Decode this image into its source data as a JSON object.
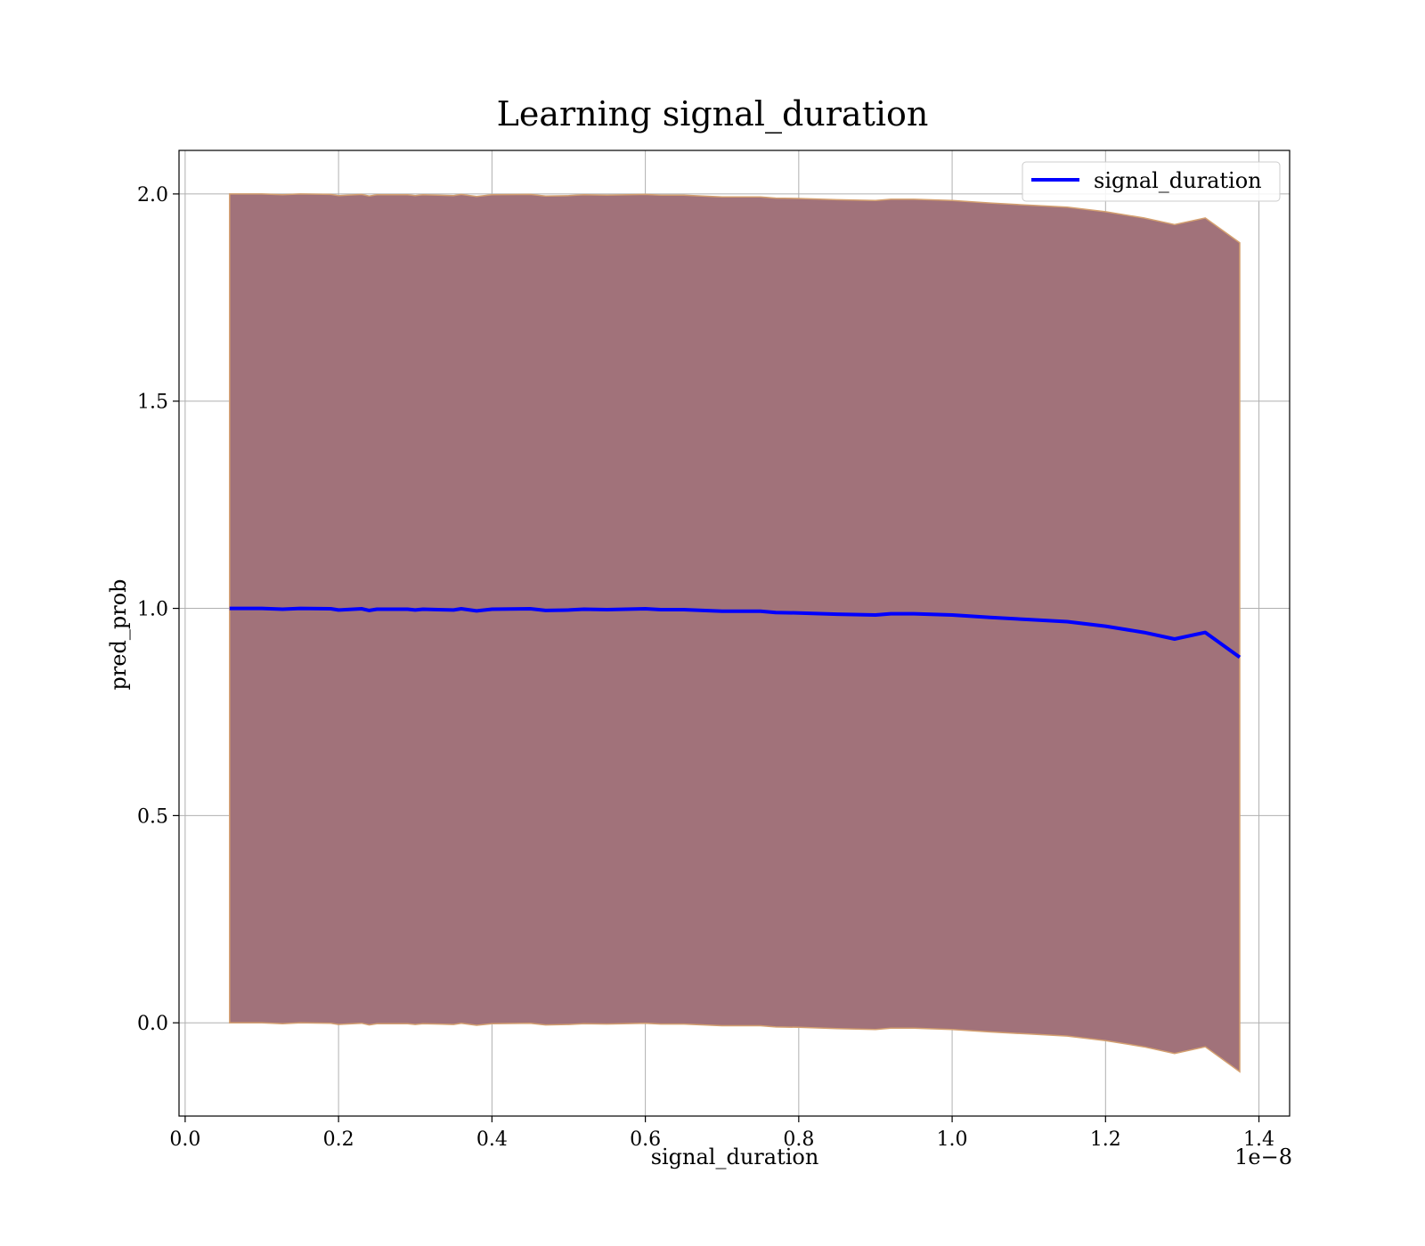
{
  "chart_data": {
    "type": "line",
    "title": "Learning signal_duration",
    "xlabel": "signal_duration",
    "ylabel": "pred_prob",
    "x_offset_label": "1e−8",
    "xlim": [
      -0.008,
      1.44
    ],
    "ylim": [
      -0.225,
      2.105
    ],
    "x_scale_label": "×1e-8",
    "xticks": [
      0.0,
      0.2,
      0.4,
      0.6,
      0.8,
      1.0,
      1.2,
      1.4
    ],
    "xtick_labels": [
      "0.0",
      "0.2",
      "0.4",
      "0.6",
      "0.8",
      "1.0",
      "1.2",
      "1.4"
    ],
    "yticks": [
      0.0,
      0.5,
      1.0,
      1.5,
      2.0
    ],
    "ytick_labels": [
      "0.0",
      "0.5",
      "1.0",
      "1.5",
      "2.0"
    ],
    "grid": true,
    "legend_position": "top-right",
    "colors": {
      "line": "#0000ff",
      "band_fill": "#a1727a",
      "band_edge": "#d4a070",
      "grid": "#b0b0b0"
    },
    "series": [
      {
        "name": "signal_duration",
        "x": [
          0.058,
          0.1,
          0.127,
          0.15,
          0.19,
          0.2,
          0.23,
          0.24,
          0.25,
          0.29,
          0.3,
          0.31,
          0.33,
          0.35,
          0.36,
          0.38,
          0.4,
          0.45,
          0.47,
          0.5,
          0.52,
          0.55,
          0.6,
          0.62,
          0.65,
          0.7,
          0.75,
          0.77,
          0.8,
          0.85,
          0.9,
          0.92,
          0.95,
          1.0,
          1.05,
          1.1,
          1.15,
          1.2,
          1.25,
          1.29,
          1.33,
          1.375
        ],
        "y": [
          1.0,
          1.0,
          0.998,
          1.0,
          0.999,
          0.996,
          0.999,
          0.995,
          0.998,
          0.998,
          0.996,
          0.998,
          0.997,
          0.996,
          0.999,
          0.994,
          0.998,
          0.999,
          0.995,
          0.996,
          0.998,
          0.997,
          0.999,
          0.997,
          0.997,
          0.993,
          0.993,
          0.99,
          0.989,
          0.986,
          0.984,
          0.987,
          0.987,
          0.984,
          0.978,
          0.973,
          0.968,
          0.957,
          0.942,
          0.926,
          0.942,
          0.882
        ]
      }
    ],
    "band": {
      "upper": [
        2.0,
        2.0,
        1.998,
        2.0,
        1.999,
        1.996,
        1.999,
        1.995,
        1.998,
        1.998,
        1.996,
        1.998,
        1.997,
        1.996,
        1.999,
        1.994,
        1.998,
        1.999,
        1.995,
        1.996,
        1.998,
        1.997,
        1.999,
        1.997,
        1.997,
        1.993,
        1.993,
        1.99,
        1.989,
        1.986,
        1.984,
        1.987,
        1.987,
        1.984,
        1.978,
        1.973,
        1.968,
        1.957,
        1.942,
        1.926,
        1.942,
        1.882
      ],
      "lower": [
        0.0,
        0.0,
        -0.002,
        0.0,
        -0.001,
        -0.004,
        -0.001,
        -0.005,
        -0.002,
        -0.002,
        -0.004,
        -0.002,
        -0.003,
        -0.004,
        -0.001,
        -0.006,
        -0.002,
        -0.001,
        -0.005,
        -0.004,
        -0.002,
        -0.003,
        -0.001,
        -0.003,
        -0.003,
        -0.007,
        -0.007,
        -0.01,
        -0.011,
        -0.014,
        -0.016,
        -0.013,
        -0.013,
        -0.016,
        -0.022,
        -0.027,
        -0.032,
        -0.043,
        -0.058,
        -0.074,
        -0.058,
        -0.118
      ]
    }
  }
}
